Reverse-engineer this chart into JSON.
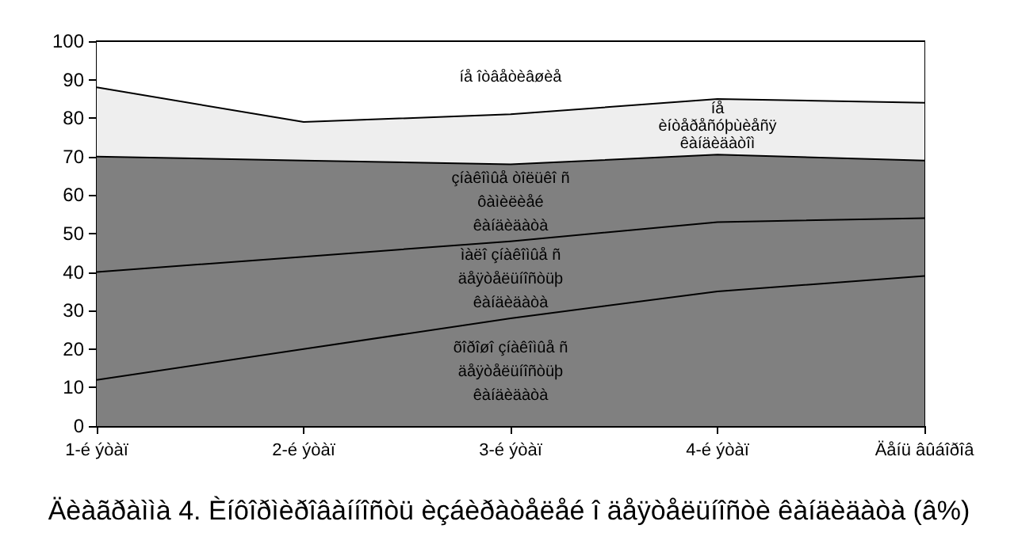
{
  "chart_data": {
    "type": "area",
    "stacked": true,
    "title": "Äèàãðàììà 4. Èíôîðìèðîâàííîñòü èçáèðàòåëåé î äåÿòåëüíîñòè êàíäèäàòà (â%)",
    "categories": [
      "1-é ýòàï",
      "2-é ýòàï",
      "3-é ýòàï",
      "4-é ýòàï",
      "Äåíü âûáîðîâ"
    ],
    "series": [
      {
        "name": "õîðîøî çíàêîìûå ñ\näåÿòåëüíîñòüþ\nêàíäèäàòà",
        "color": "#808080",
        "values": [
          12,
          20,
          28,
          35,
          39
        ]
      },
      {
        "name": "ìàëî çíàêîìûå ñ\näåÿòåëüíîñòüþ\nêàíäèäàòà",
        "color": "#808080",
        "values": [
          28,
          24,
          20,
          18,
          15
        ]
      },
      {
        "name": "çíàêîìûå òîëüêî ñ\nôàìèëèåé\nêàíäèäàòà",
        "color": "#808080",
        "values": [
          30,
          25,
          20,
          17.5,
          15
        ]
      },
      {
        "name": "íå\nèíòåðåñóþùèåñÿ\nêàíäèäàòîì",
        "color": "#eeeeee",
        "values": [
          18,
          10,
          13,
          14.5,
          15
        ]
      },
      {
        "name": "íå îòâåòèâøèå",
        "color": "#ffffff",
        "values": [
          12,
          21,
          19,
          15,
          16
        ]
      }
    ],
    "ylim": [
      0,
      100
    ],
    "yticks": [
      0,
      10,
      20,
      30,
      40,
      50,
      60,
      70,
      80,
      90,
      100
    ],
    "grid": false,
    "legend": false
  }
}
